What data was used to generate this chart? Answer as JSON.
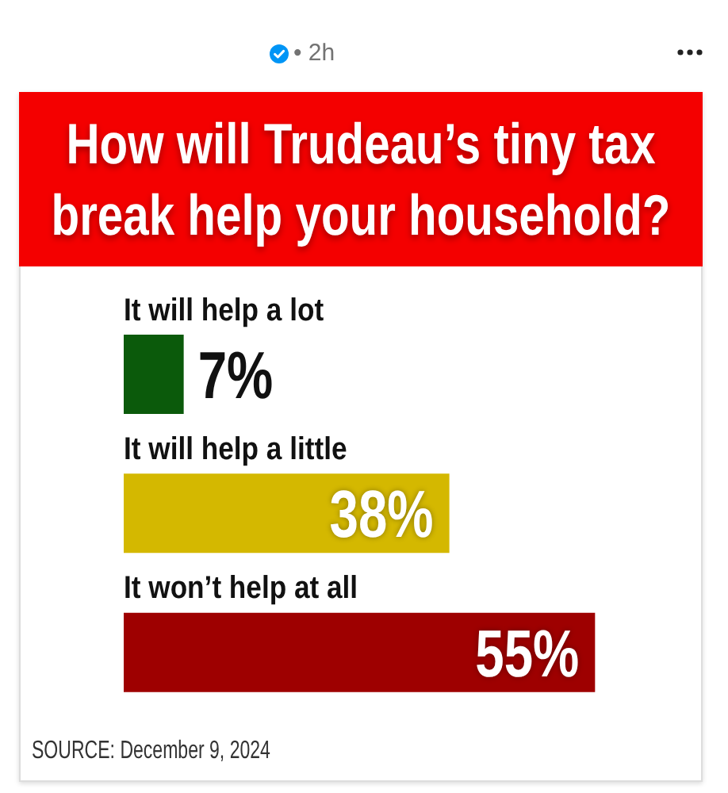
{
  "chart_data": {
    "type": "bar",
    "orientation": "horizontal",
    "title": "How will Trudeau’s tiny tax break help your household?",
    "categories": [
      "It will help a lot",
      "It will help a little",
      "It won’t help at all"
    ],
    "values": [
      7,
      38,
      55
    ],
    "colors": [
      "#0b5a0b",
      "#d4b800",
      "#9e0000"
    ],
    "value_labels": [
      "7%",
      "38%",
      "55%"
    ],
    "xlim": [
      0,
      67
    ],
    "tick_labels": "y",
    "annotations": [
      "• 2h",
      "SOURCE: December 9, 2024"
    ]
  }
}
